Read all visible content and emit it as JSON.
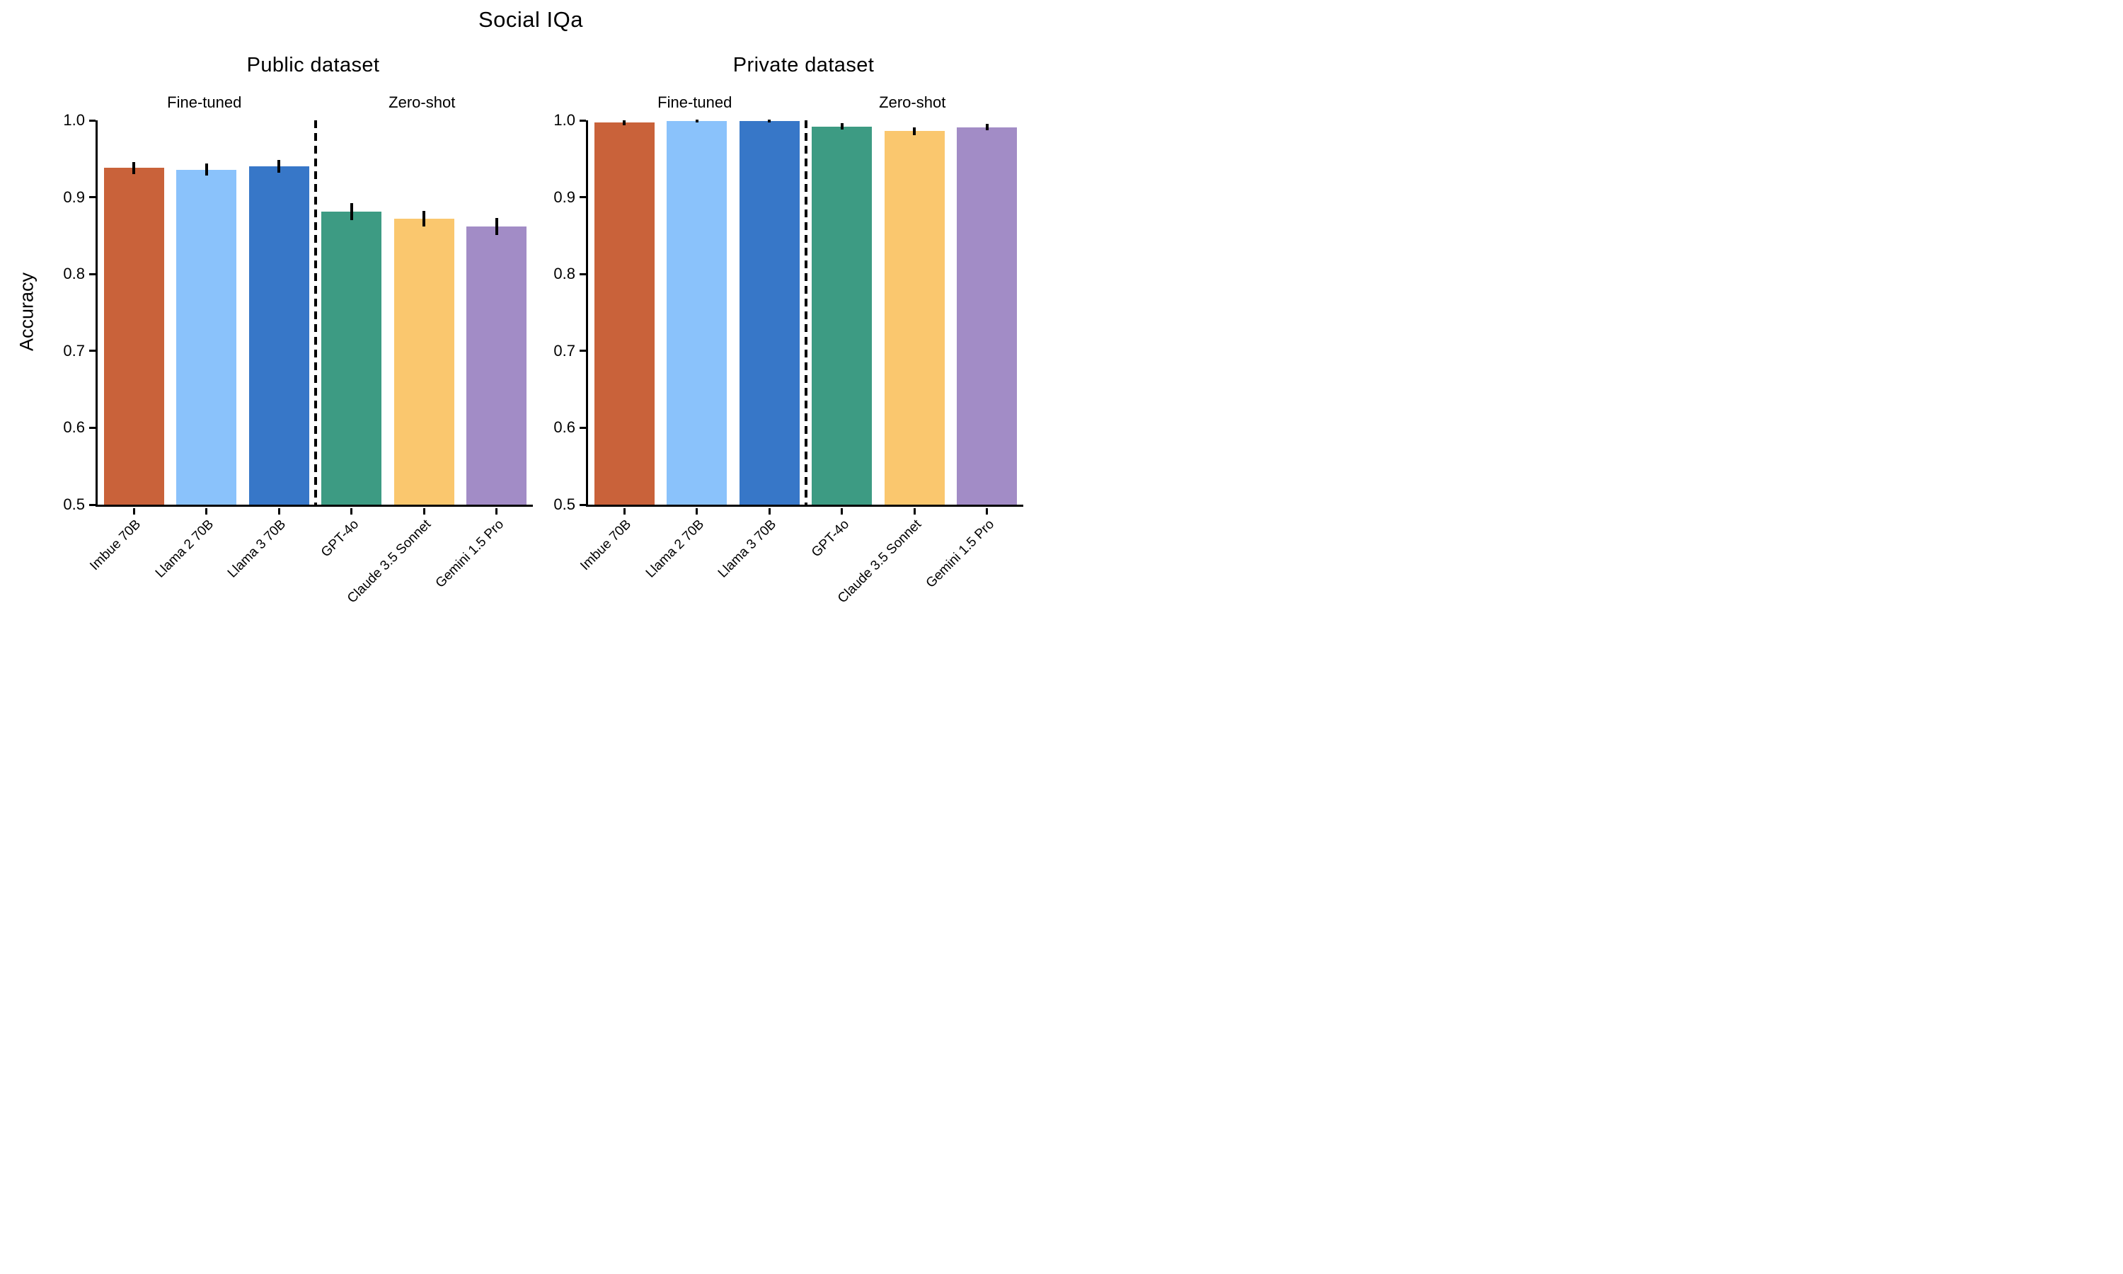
{
  "figure_title": "Social IQa",
  "ylabel": "Accuracy",
  "colors": {
    "imbue_rust": "#C9623A",
    "llama2_light_blue": "#8AC2FB",
    "llama3_blue": "#3777C8",
    "gpt4o_green": "#3D9B83",
    "claude_amber": "#FAC76E",
    "gemini_purple": "#A28CC6",
    "axis_and_text": "#000000",
    "background": "#FFFFFF"
  },
  "chart_data": [
    {
      "type": "bar",
      "title": "Public dataset",
      "group_labels": [
        "Fine-tuned",
        "Zero-shot"
      ],
      "separator_after_index": 2,
      "categories": [
        "Imbue 70B",
        "Llama 2 70B",
        "Llama 3 70B",
        "GPT-4o",
        "Claude 3.5 Sonnet",
        "Gemini 1.5 Pro"
      ],
      "values": [
        0.938,
        0.936,
        0.94,
        0.881,
        0.872,
        0.862
      ],
      "errors": [
        0.008,
        0.008,
        0.008,
        0.011,
        0.01,
        0.011
      ],
      "bar_color_keys": [
        "imbue_rust",
        "llama2_light_blue",
        "llama3_blue",
        "gpt4o_green",
        "claude_amber",
        "gemini_purple"
      ],
      "xlabel": "",
      "ylabel": "Accuracy",
      "ylim": [
        0.5,
        1.0
      ],
      "yticks": [
        1.0,
        0.9,
        0.8,
        0.7,
        0.6,
        0.5
      ],
      "ytick_labels": [
        "1.0",
        "0.9",
        "0.8",
        "0.7",
        "0.6",
        "0.5"
      ],
      "grid": false,
      "legend": "none"
    },
    {
      "type": "bar",
      "title": "Private dataset",
      "group_labels": [
        "Fine-tuned",
        "Zero-shot"
      ],
      "separator_after_index": 2,
      "categories": [
        "Imbue 70B",
        "Llama 2 70B",
        "Llama 3 70B",
        "GPT-4o",
        "Claude 3.5 Sonnet",
        "Gemini 1.5 Pro"
      ],
      "values": [
        0.997,
        0.999,
        0.999,
        0.992,
        0.986,
        0.991
      ],
      "errors": [
        0.003,
        0.002,
        0.002,
        0.004,
        0.005,
        0.004
      ],
      "bar_color_keys": [
        "imbue_rust",
        "llama2_light_blue",
        "llama3_blue",
        "gpt4o_green",
        "claude_amber",
        "gemini_purple"
      ],
      "xlabel": "",
      "ylabel": "Accuracy",
      "ylim": [
        0.5,
        1.0
      ],
      "yticks": [
        1.0,
        0.9,
        0.8,
        0.7,
        0.6,
        0.5
      ],
      "ytick_labels": [
        "1.0",
        "0.9",
        "0.8",
        "0.7",
        "0.6",
        "0.5"
      ],
      "grid": false,
      "legend": "none"
    }
  ]
}
